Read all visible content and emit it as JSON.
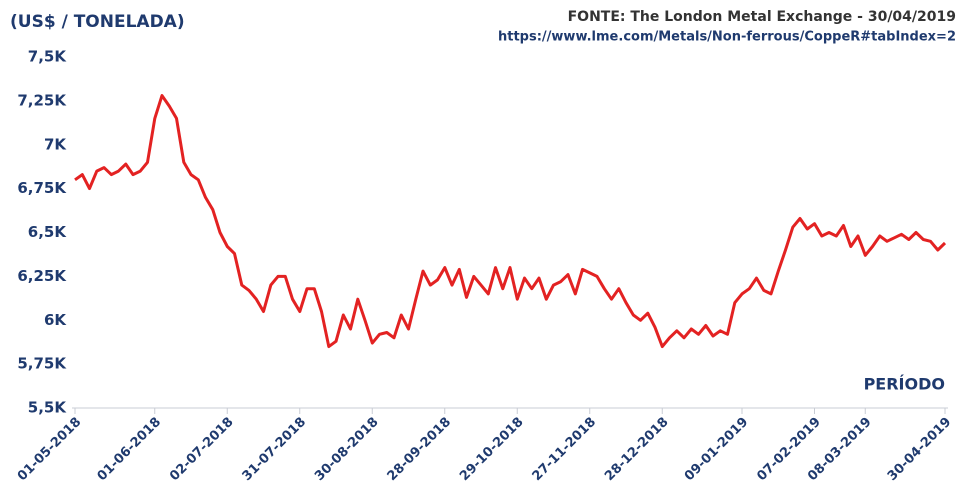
{
  "chart_data": {
    "type": "line",
    "title": "(US$ / TONELADA)",
    "source": "FONTE: The London Metal Exchange - 30/04/2019",
    "url": "https://www.lme.com/Metals/Non-ferrous/CoppeR#tabIndex=2",
    "x_label": "PERÍODO",
    "categories": [
      "01-05-2018",
      null,
      null,
      null,
      null,
      null,
      null,
      null,
      null,
      null,
      null,
      "01-06-2018",
      null,
      null,
      null,
      null,
      null,
      null,
      null,
      null,
      null,
      "02-07-2018",
      null,
      null,
      null,
      null,
      null,
      null,
      null,
      null,
      null,
      "31-07-2018",
      null,
      null,
      null,
      null,
      null,
      null,
      null,
      null,
      null,
      "30-08-2018",
      null,
      null,
      null,
      null,
      null,
      null,
      null,
      null,
      null,
      "28-09-2018",
      null,
      null,
      null,
      null,
      null,
      null,
      null,
      null,
      null,
      "29-10-2018",
      null,
      null,
      null,
      null,
      null,
      null,
      null,
      null,
      null,
      "27-11-2018",
      null,
      null,
      null,
      null,
      null,
      null,
      null,
      null,
      null,
      "28-12-2018",
      null,
      null,
      null,
      null,
      null,
      null,
      null,
      null,
      null,
      null,
      "09-01-2019",
      null,
      null,
      null,
      null,
      null,
      null,
      null,
      null,
      null,
      "07-02-2019",
      null,
      null,
      null,
      null,
      null,
      null,
      "08-03-2019",
      null,
      null,
      null,
      null,
      null,
      null,
      null,
      null,
      null,
      null,
      "30-04-2019"
    ],
    "series": [
      {
        "color": "#e32222",
        "values": [
          6800,
          6830,
          6750,
          6850,
          6870,
          6830,
          6850,
          6890,
          6830,
          6850,
          6900,
          7150,
          7280,
          7220,
          7150,
          6900,
          6830,
          6800,
          6700,
          6630,
          6500,
          6420,
          6380,
          6200,
          6170,
          6120,
          6050,
          6200,
          6250,
          6250,
          6120,
          6050,
          6180,
          6180,
          6050,
          5850,
          5880,
          6030,
          5950,
          6120,
          6000,
          5870,
          5920,
          5930,
          5900,
          6030,
          5950,
          6120,
          6280,
          6200,
          6230,
          6300,
          6200,
          6290,
          6130,
          6250,
          6200,
          6150,
          6300,
          6180,
          6300,
          6120,
          6240,
          6180,
          6240,
          6120,
          6200,
          6220,
          6260,
          6150,
          6290,
          6270,
          6250,
          6180,
          6120,
          6180,
          6100,
          6030,
          6000,
          6040,
          5960,
          5850,
          5900,
          5940,
          5900,
          5950,
          5920,
          5970,
          5910,
          5940,
          5920,
          6100,
          6150,
          6180,
          6240,
          6170,
          6150,
          6280,
          6400,
          6530,
          6580,
          6520,
          6550,
          6480,
          6500,
          6480,
          6540,
          6420,
          6480,
          6370,
          6420,
          6480,
          6450,
          6470,
          6490,
          6460,
          6500,
          6460,
          6450,
          6400,
          6440
        ]
      }
    ],
    "ylim": [
      5500,
      7500
    ],
    "yticks": [
      {
        "value": 5500,
        "label": "5,5K"
      },
      {
        "value": 5750,
        "label": "5,75K"
      },
      {
        "value": 6000,
        "label": "6K"
      },
      {
        "value": 6250,
        "label": "6,25K"
      },
      {
        "value": 6500,
        "label": "6,5K"
      },
      {
        "value": 6750,
        "label": "6,75K"
      },
      {
        "value": 7000,
        "label": "7K"
      },
      {
        "value": 7250,
        "label": "7,25K"
      },
      {
        "value": 7500,
        "label": "7,5K"
      }
    ]
  }
}
